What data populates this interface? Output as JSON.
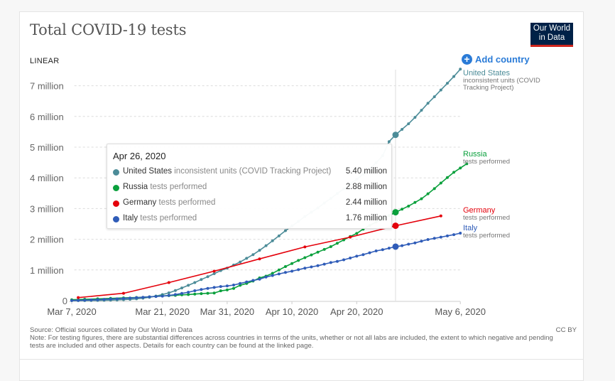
{
  "title": "Total COVID-19 tests",
  "logo": {
    "line1": "Our World",
    "line2": "in Data"
  },
  "scale_toggle": "LINEAR",
  "add_country": {
    "icon": "plus-circle-icon",
    "label": "Add country"
  },
  "tooltip": {
    "date": "Apr 26, 2020",
    "rows": [
      {
        "country": "United States",
        "unit": "inconsistent units (COVID Tracking Project)",
        "value": "5.40 million",
        "color": "#4c8c98"
      },
      {
        "country": "Russia",
        "unit": "tests performed",
        "value": "2.88 million",
        "color": "#0aa03c"
      },
      {
        "country": "Germany",
        "unit": "tests performed",
        "value": "2.44 million",
        "color": "#e4010b"
      },
      {
        "country": "Italy",
        "unit": "tests performed",
        "value": "1.76 million",
        "color": "#2f5cb8"
      }
    ]
  },
  "footer": {
    "source": "Source: Official sources collated by Our World in Data",
    "note": "Note: For testing figures, there are substantial differences across countries in terms of the units, whether or not all labs are included, the extent to which negative and pending tests are included and other aspects. Details for each country can be found at the linked page.",
    "license": "CC BY"
  },
  "chart_data": {
    "type": "line",
    "title": "Total COVID-19 tests",
    "xlabel": "",
    "ylabel": "",
    "x_range": [
      "2020-03-07",
      "2020-05-06"
    ],
    "x_ticks": [
      {
        "label": "Mar 7, 2020",
        "day": 0
      },
      {
        "label": "Mar 21, 2020",
        "day": 14
      },
      {
        "label": "Mar 31, 2020",
        "day": 24
      },
      {
        "label": "Apr 10, 2020",
        "day": 34
      },
      {
        "label": "Apr 20, 2020",
        "day": 44
      },
      {
        "label": "May 6, 2020",
        "day": 60
      }
    ],
    "y_ticks": [
      {
        "label": "0",
        "value": 0
      },
      {
        "label": "1 million",
        "value": 1
      },
      {
        "label": "2 million",
        "value": 2
      },
      {
        "label": "3 million",
        "value": 3
      },
      {
        "label": "4 million",
        "value": 4
      },
      {
        "label": "5 million",
        "value": 5
      },
      {
        "label": "6 million",
        "value": 6
      },
      {
        "label": "7 million",
        "value": 7
      }
    ],
    "ylim": [
      0,
      7.3
    ],
    "y_unit": "million",
    "grid": true,
    "highlight_day": 50,
    "series": [
      {
        "name": "United States",
        "sub": "inconsistent units (COVID Tracking Project)",
        "color": "#4c8c98",
        "points": [
          [
            0,
            0.002
          ],
          [
            1,
            0.003
          ],
          [
            2,
            0.004
          ],
          [
            3,
            0.006
          ],
          [
            4,
            0.008
          ],
          [
            5,
            0.011
          ],
          [
            6,
            0.016
          ],
          [
            7,
            0.023
          ],
          [
            8,
            0.032
          ],
          [
            9,
            0.043
          ],
          [
            10,
            0.06
          ],
          [
            11,
            0.08
          ],
          [
            12,
            0.11
          ],
          [
            13,
            0.15
          ],
          [
            14,
            0.2
          ],
          [
            15,
            0.255
          ],
          [
            16,
            0.33
          ],
          [
            17,
            0.415
          ],
          [
            18,
            0.5
          ],
          [
            19,
            0.59
          ],
          [
            20,
            0.69
          ],
          [
            21,
            0.78
          ],
          [
            22,
            0.88
          ],
          [
            23,
            0.98
          ],
          [
            24,
            1.06
          ],
          [
            25,
            1.16
          ],
          [
            26,
            1.26
          ],
          [
            27,
            1.38
          ],
          [
            28,
            1.5
          ],
          [
            29,
            1.64
          ],
          [
            30,
            1.79
          ],
          [
            31,
            1.95
          ],
          [
            32,
            2.11
          ],
          [
            33,
            2.28
          ],
          [
            34,
            2.43
          ],
          [
            35,
            2.58
          ],
          [
            36,
            2.74
          ],
          [
            37,
            2.88
          ],
          [
            38,
            3.02
          ],
          [
            39,
            3.18
          ],
          [
            40,
            3.33
          ],
          [
            41,
            3.49
          ],
          [
            42,
            3.64
          ],
          [
            43,
            3.8
          ],
          [
            44,
            3.95
          ],
          [
            45,
            4.12
          ],
          [
            46,
            4.29
          ],
          [
            47,
            4.49
          ],
          [
            48,
            4.72
          ],
          [
            49,
            5.18
          ],
          [
            50,
            5.4
          ],
          [
            51,
            5.58
          ],
          [
            52,
            5.76
          ],
          [
            53,
            5.97
          ],
          [
            54,
            6.2
          ],
          [
            55,
            6.43
          ],
          [
            56,
            6.64
          ],
          [
            57,
            6.86
          ],
          [
            58,
            7.08
          ],
          [
            59,
            7.3
          ],
          [
            60,
            7.54
          ]
        ]
      },
      {
        "name": "Russia",
        "sub": "tests performed",
        "color": "#0aa03c",
        "points": [
          [
            0,
            0.03
          ],
          [
            2,
            0.045
          ],
          [
            4,
            0.06
          ],
          [
            6,
            0.075
          ],
          [
            8,
            0.09
          ],
          [
            10,
            0.105
          ],
          [
            12,
            0.125
          ],
          [
            13,
            0.14
          ],
          [
            14,
            0.155
          ],
          [
            15,
            0.165
          ],
          [
            16,
            0.175
          ],
          [
            17,
            0.19
          ],
          [
            18,
            0.2
          ],
          [
            19,
            0.215
          ],
          [
            20,
            0.23
          ],
          [
            21,
            0.24
          ],
          [
            22,
            0.25
          ],
          [
            23,
            0.32
          ],
          [
            24,
            0.35
          ],
          [
            25,
            0.4
          ],
          [
            26,
            0.5
          ],
          [
            27,
            0.56
          ],
          [
            28,
            0.64
          ],
          [
            29,
            0.74
          ],
          [
            30,
            0.8
          ],
          [
            31,
            0.89
          ],
          [
            32,
            1.0
          ],
          [
            33,
            1.11
          ],
          [
            34,
            1.21
          ],
          [
            35,
            1.31
          ],
          [
            36,
            1.4
          ],
          [
            37,
            1.49
          ],
          [
            38,
            1.58
          ],
          [
            39,
            1.67
          ],
          [
            40,
            1.76
          ],
          [
            41,
            1.87
          ],
          [
            42,
            1.98
          ],
          [
            43,
            2.09
          ],
          [
            44,
            2.19
          ],
          [
            45,
            2.33
          ],
          [
            46,
            2.45
          ],
          [
            47,
            2.56
          ],
          [
            48,
            2.66
          ],
          [
            49,
            2.77
          ],
          [
            50,
            2.88
          ],
          [
            51,
            2.98
          ],
          [
            52,
            3.08
          ],
          [
            53,
            3.2
          ],
          [
            54,
            3.32
          ],
          [
            55,
            3.48
          ],
          [
            56,
            3.65
          ],
          [
            57,
            3.83
          ],
          [
            58,
            4.01
          ],
          [
            59,
            4.18
          ],
          [
            60,
            4.32
          ],
          [
            61,
            4.46
          ]
        ]
      },
      {
        "name": "Germany",
        "sub": "tests performed",
        "color": "#e4010b",
        "points": [
          [
            1,
            0.1
          ],
          [
            8,
            0.24
          ],
          [
            15,
            0.59
          ],
          [
            22,
            0.96
          ],
          [
            29,
            1.36
          ],
          [
            36,
            1.75
          ],
          [
            43,
            2.07
          ],
          [
            50,
            2.44
          ],
          [
            57,
            2.76
          ]
        ]
      },
      {
        "name": "Italy",
        "sub": "tests performed",
        "color": "#2f5cb8",
        "points": [
          [
            0,
            0.006
          ],
          [
            1,
            0.01
          ],
          [
            2,
            0.017
          ],
          [
            3,
            0.025
          ],
          [
            4,
            0.032
          ],
          [
            5,
            0.042
          ],
          [
            6,
            0.054
          ],
          [
            7,
            0.061
          ],
          [
            8,
            0.073
          ],
          [
            9,
            0.086
          ],
          [
            10,
            0.097
          ],
          [
            11,
            0.11
          ],
          [
            12,
            0.125
          ],
          [
            13,
            0.137
          ],
          [
            14,
            0.149
          ],
          [
            15,
            0.17
          ],
          [
            16,
            0.2
          ],
          [
            17,
            0.236
          ],
          [
            18,
            0.275
          ],
          [
            19,
            0.325
          ],
          [
            20,
            0.364
          ],
          [
            21,
            0.4
          ],
          [
            22,
            0.43
          ],
          [
            23,
            0.46
          ],
          [
            24,
            0.48
          ],
          [
            25,
            0.51
          ],
          [
            26,
            0.56
          ],
          [
            27,
            0.61
          ],
          [
            28,
            0.66
          ],
          [
            29,
            0.7
          ],
          [
            30,
            0.77
          ],
          [
            31,
            0.82
          ],
          [
            32,
            0.87
          ],
          [
            33,
            0.92
          ],
          [
            34,
            0.96
          ],
          [
            35,
            1.01
          ],
          [
            36,
            1.06
          ],
          [
            37,
            1.1
          ],
          [
            38,
            1.14
          ],
          [
            39,
            1.19
          ],
          [
            40,
            1.24
          ],
          [
            41,
            1.28
          ],
          [
            42,
            1.33
          ],
          [
            43,
            1.39
          ],
          [
            44,
            1.45
          ],
          [
            45,
            1.5
          ],
          [
            46,
            1.56
          ],
          [
            47,
            1.62
          ],
          [
            48,
            1.66
          ],
          [
            49,
            1.71
          ],
          [
            50,
            1.76
          ],
          [
            51,
            1.79
          ],
          [
            52,
            1.84
          ],
          [
            53,
            1.88
          ],
          [
            54,
            1.94
          ],
          [
            55,
            1.99
          ],
          [
            56,
            2.03
          ],
          [
            57,
            2.07
          ],
          [
            58,
            2.11
          ],
          [
            59,
            2.15
          ],
          [
            60,
            2.2
          ]
        ]
      }
    ]
  }
}
